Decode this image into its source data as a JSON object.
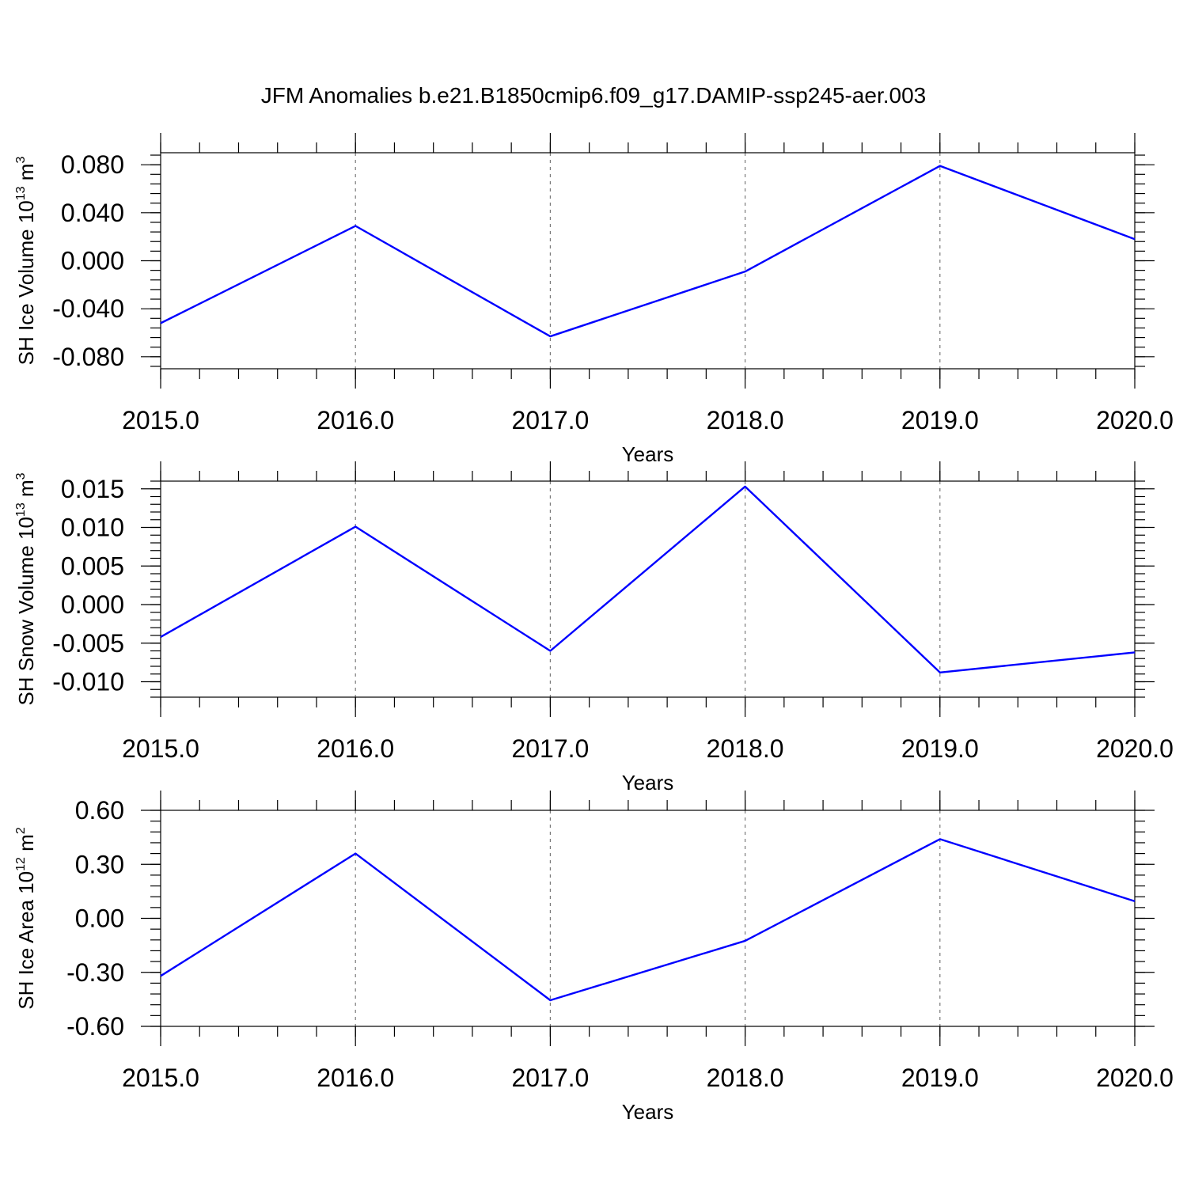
{
  "title": "JFM Anomalies b.e21.B1850cmip6.f09_g17.DAMIP-ssp245-aer.003",
  "colors": {
    "series": "#0000ff",
    "grid": "#7a7a7a",
    "axes": "#000000",
    "background": "#ffffff"
  },
  "chart_data": [
    {
      "type": "line",
      "ylabel": "SH Ice Volume 10",
      "ylabel_exp": "13",
      "ylabel_unit": "m",
      "ylabel_unit_exp": "3",
      "xlabel": "Years",
      "xlim": [
        2015,
        2020
      ],
      "ylim": [
        -0.09,
        0.09
      ],
      "x_ticks": [
        2015,
        2016,
        2017,
        2018,
        2019,
        2020
      ],
      "x_tick_labels": [
        "2015.0",
        "2016.0",
        "2017.0",
        "2018.0",
        "2019.0",
        "2020.0"
      ],
      "y_ticks": [
        0.08,
        0.04,
        0.0,
        -0.04,
        -0.08
      ],
      "y_tick_labels": [
        "0.080",
        "0.040",
        "0.000",
        "-0.040",
        "-0.080"
      ],
      "y_minor_step": 0.008,
      "x_minor_step": 0.2,
      "grid": "vertical dashed at major x ticks",
      "x": [
        2015,
        2016,
        2017,
        2018,
        2019,
        2020
      ],
      "values": [
        -0.052,
        0.029,
        -0.063,
        -0.009,
        0.079,
        0.018
      ]
    },
    {
      "type": "line",
      "ylabel": "SH Snow Volume 10",
      "ylabel_exp": "13",
      "ylabel_unit": "m",
      "ylabel_unit_exp": "3",
      "xlabel": "Years",
      "xlim": [
        2015,
        2020
      ],
      "ylim": [
        -0.012,
        0.016
      ],
      "x_ticks": [
        2015,
        2016,
        2017,
        2018,
        2019,
        2020
      ],
      "x_tick_labels": [
        "2015.0",
        "2016.0",
        "2017.0",
        "2018.0",
        "2019.0",
        "2020.0"
      ],
      "y_ticks": [
        0.015,
        0.01,
        0.005,
        0.0,
        -0.005,
        -0.01
      ],
      "y_tick_labels": [
        "0.015",
        "0.010",
        "0.005",
        "0.000",
        "-0.005",
        "-0.010"
      ],
      "y_minor_step": 0.001,
      "x_minor_step": 0.2,
      "grid": "vertical dashed at major x ticks",
      "x": [
        2015,
        2016,
        2017,
        2018,
        2019,
        2020
      ],
      "values": [
        -0.0042,
        0.0101,
        -0.006,
        0.0153,
        -0.0088,
        -0.0062
      ]
    },
    {
      "type": "line",
      "ylabel": "SH Ice Area 10",
      "ylabel_exp": "12",
      "ylabel_unit": "m",
      "ylabel_unit_exp": "2",
      "xlabel": "Years",
      "xlim": [
        2015,
        2020
      ],
      "ylim": [
        -0.6,
        0.6
      ],
      "x_ticks": [
        2015,
        2016,
        2017,
        2018,
        2019,
        2020
      ],
      "x_tick_labels": [
        "2015.0",
        "2016.0",
        "2017.0",
        "2018.0",
        "2019.0",
        "2020.0"
      ],
      "y_ticks": [
        0.6,
        0.3,
        0.0,
        -0.3,
        -0.6
      ],
      "y_tick_labels": [
        "0.60",
        "0.30",
        "0.00",
        "-0.30",
        "-0.60"
      ],
      "y_minor_step": 0.06,
      "x_minor_step": 0.2,
      "grid": "vertical dashed at major x ticks",
      "x": [
        2015,
        2016,
        2017,
        2018,
        2019,
        2020
      ],
      "values": [
        -0.32,
        0.36,
        -0.455,
        -0.125,
        0.44,
        0.095
      ]
    }
  ]
}
